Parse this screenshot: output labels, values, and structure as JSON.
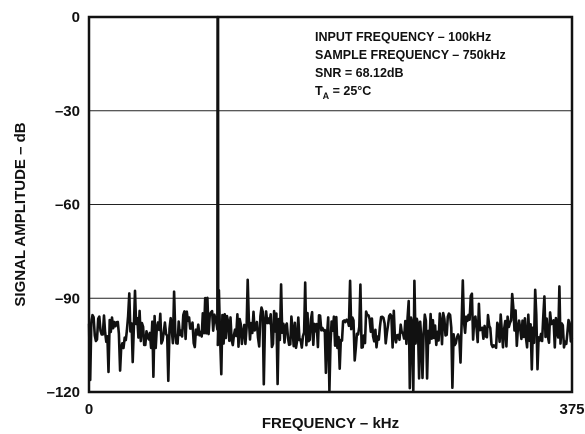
{
  "chart_data": {
    "type": "line",
    "title": "",
    "xlabel": "FREQUENCY – kHz",
    "ylabel": "SIGNAL AMPLITUDE – dB",
    "xlim": [
      0,
      375
    ],
    "ylim": [
      -120,
      0
    ],
    "x_tick_labels": [
      "0",
      "375"
    ],
    "x_ticks": [
      0,
      375
    ],
    "y_tick_labels": [
      "0",
      "–30",
      "–60",
      "–90",
      "–120"
    ],
    "y_ticks": [
      0,
      -30,
      -60,
      -90,
      -120
    ],
    "grid": "horizontal",
    "annotations": [
      {
        "prefix": "INPUT FREQUENCY – 100kHz",
        "sub": "",
        "suffix": ""
      },
      {
        "prefix": "SAMPLE FREQUENCY – 750kHz",
        "sub": "",
        "suffix": ""
      },
      {
        "prefix": "SNR = 68.12dB",
        "sub": "",
        "suffix": ""
      },
      {
        "prefix": "T",
        "sub": "A",
        "suffix": " = 25°C"
      }
    ],
    "series": [
      {
        "fundamental": {
          "x": 100,
          "y": 0
        },
        "noise_floor_mean": -100,
        "noise_floor_min": -120,
        "noise_floor_max": -84
      }
    ],
    "line_color": "#111111"
  }
}
